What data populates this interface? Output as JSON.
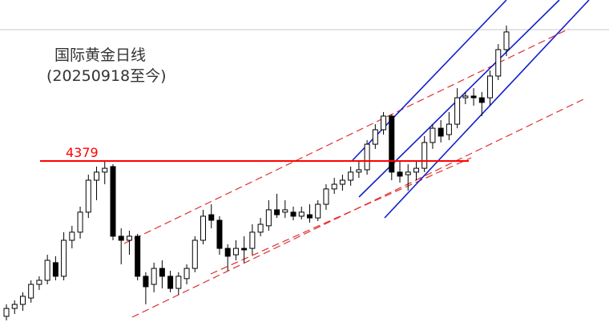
{
  "chart_data": {
    "type": "candlestick",
    "title": "国际黄金日线",
    "subtitle": "(20250918至今)",
    "ylim": [
      3567,
      5135
    ],
    "level": 4379,
    "level_color": "#ff0000",
    "up_color": "#ffffff",
    "down_color": "#000000",
    "open": [
      3650,
      3687,
      3706,
      3736,
      3800,
      3819,
      3902,
      3838,
      4007,
      4045,
      4139,
      4289,
      4327,
      4353,
      4026,
      4007,
      4026,
      3838,
      3800,
      3875,
      3838,
      3781,
      3827,
      3875,
      4007,
      4127,
      4101,
      3969,
      3939,
      3969,
      3969,
      4045,
      4075,
      4150,
      4139,
      4139,
      4120,
      4127,
      4112,
      4176,
      4248,
      4270,
      4289,
      4327,
      4338,
      4458,
      4526,
      4590,
      4327,
      4315,
      4327,
      4345,
      4466,
      4533,
      4503,
      4552,
      4676,
      4684,
      4676,
      4676,
      4778,
      4902
    ],
    "close": [
      3687,
      3706,
      3744,
      3800,
      3819,
      3913,
      3838,
      4007,
      4045,
      4139,
      4289,
      4327,
      4345,
      4026,
      4007,
      4026,
      3838,
      3789,
      3875,
      3838,
      3781,
      3838,
      3875,
      4007,
      4120,
      4101,
      3969,
      3932,
      3969,
      3962,
      4045,
      4082,
      4150,
      4127,
      4150,
      4120,
      4139,
      4112,
      4176,
      4248,
      4270,
      4289,
      4327,
      4338,
      4458,
      4526,
      4590,
      4327,
      4308,
      4327,
      4345,
      4466,
      4533,
      4496,
      4552,
      4676,
      4684,
      4676,
      4654,
      4778,
      4902,
      4985
    ],
    "high": [
      3706,
      3725,
      3763,
      3819,
      3838,
      3939,
      3932,
      4045,
      4075,
      4165,
      4315,
      4353,
      4379,
      4364,
      4063,
      4052,
      4037,
      3857,
      3902,
      3913,
      3864,
      3857,
      3894,
      4026,
      4150,
      4176,
      4120,
      3988,
      4007,
      4026,
      4082,
      4112,
      4195,
      4225,
      4195,
      4165,
      4165,
      4176,
      4195,
      4270,
      4300,
      4315,
      4353,
      4383,
      4477,
      4552,
      4609,
      4597,
      4383,
      4364,
      4383,
      4496,
      4552,
      4571,
      4609,
      4721,
      4703,
      4721,
      4703,
      4804,
      4928,
      5015
    ],
    "low": [
      3631,
      3661,
      3676,
      3714,
      3774,
      3800,
      3819,
      3819,
      3969,
      4015,
      4112,
      4195,
      4270,
      4007,
      3894,
      3939,
      3819,
      3706,
      3763,
      3781,
      3763,
      3751,
      3800,
      3857,
      3988,
      4063,
      3939,
      3864,
      3913,
      3902,
      3939,
      4026,
      4052,
      4112,
      4112,
      4101,
      4105,
      4090,
      4097,
      4150,
      4225,
      4240,
      4263,
      4300,
      4315,
      4436,
      4503,
      4289,
      4278,
      4240,
      4289,
      4327,
      4436,
      4466,
      4477,
      4533,
      4646,
      4639,
      4590,
      4639,
      4759,
      4872
    ]
  }
}
